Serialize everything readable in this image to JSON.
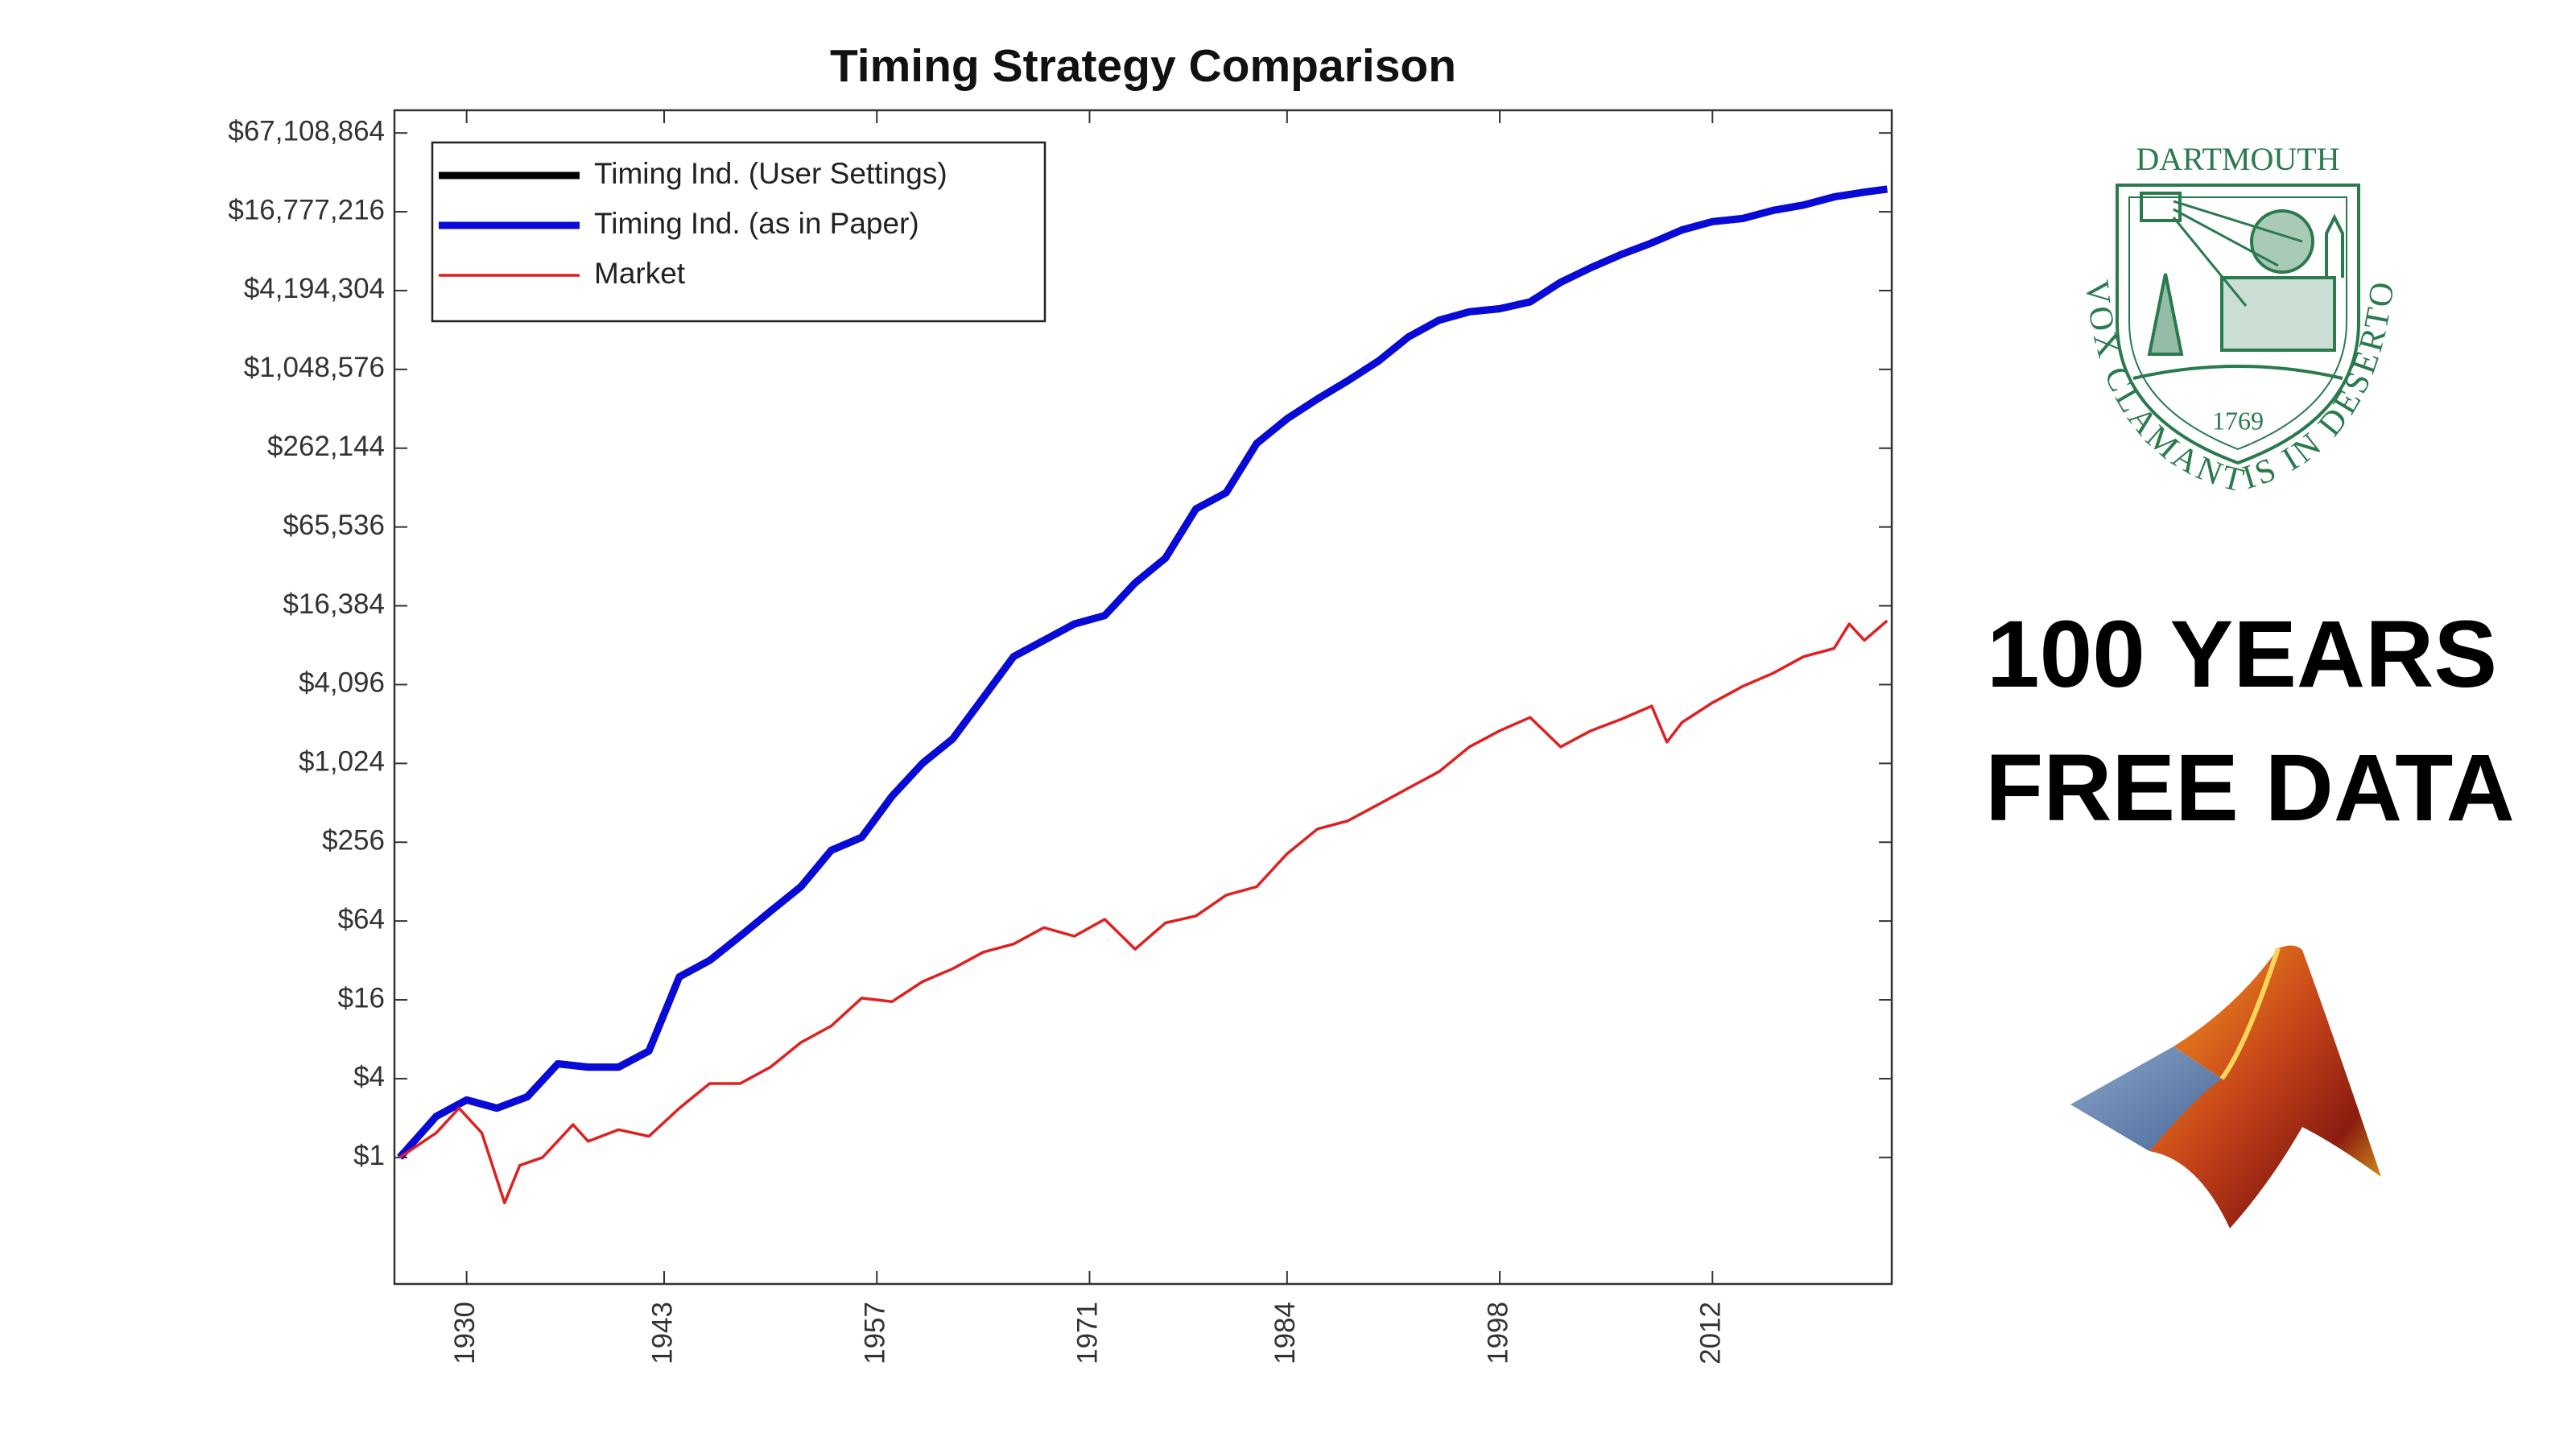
{
  "chart_data": {
    "type": "line",
    "title": "Timing Strategy Comparison",
    "yscale": "log",
    "grid": false,
    "legend_location": "northwest",
    "xlim": [
      1925.25,
      2023.8
    ],
    "xticks": [
      1930,
      1943,
      1957,
      1971,
      1984,
      1998,
      2012
    ],
    "ylim": [
      0.108,
      100000000
    ],
    "yticks": [
      {
        "value": 1,
        "label": "$1"
      },
      {
        "value": 4,
        "label": "$4"
      },
      {
        "value": 16,
        "label": "$16"
      },
      {
        "value": 64,
        "label": "$64"
      },
      {
        "value": 256,
        "label": "$256"
      },
      {
        "value": 1024,
        "label": "$1,024"
      },
      {
        "value": 4096,
        "label": "$4,096"
      },
      {
        "value": 16384,
        "label": "$16,384"
      },
      {
        "value": 65536,
        "label": "$65,536"
      },
      {
        "value": 262144,
        "label": "$262,144"
      },
      {
        "value": 1048576,
        "label": "$1,048,576"
      },
      {
        "value": 4194304,
        "label": "$4,194,304"
      },
      {
        "value": 16777216,
        "label": "$16,777,216"
      },
      {
        "value": 67108864,
        "label": "$67,108,864"
      }
    ],
    "series": [
      {
        "name": "Timing Ind. (User Settings)",
        "color": "#000000",
        "width": 9,
        "x": [
          1925.6,
          1928,
          1930,
          1932,
          1934,
          1936,
          1938,
          1940,
          1942,
          1944,
          1946,
          1948,
          1950,
          1952,
          1954,
          1956,
          1958,
          1960,
          1962,
          1964,
          1966,
          1968,
          1970,
          1972,
          1974,
          1976,
          1978,
          1980,
          1982,
          1984,
          1986,
          1988,
          1990,
          1992,
          1994,
          1996,
          1998,
          2000,
          2002,
          2004,
          2006,
          2008,
          2010,
          2012,
          2014,
          2016,
          2018,
          2020,
          2022,
          2023.5
        ],
        "values": [
          1,
          2.06,
          2.75,
          2.38,
          2.91,
          5.19,
          4.9,
          4.9,
          6.5,
          24,
          32,
          49,
          76,
          117,
          222,
          279,
          575,
          1024,
          1580,
          3250,
          6700,
          8930,
          11900,
          13800,
          24500,
          37900,
          90100,
          120000,
          285000,
          440000,
          623000,
          858000,
          1210000,
          1860000,
          2490000,
          2890000,
          3050000,
          3440000,
          4850000,
          6280000,
          7920000,
          9700000,
          12200000,
          14100000,
          14900000,
          17200000,
          18900000,
          21800000,
          23700000,
          25000000
        ]
      },
      {
        "name": "Timing Ind. (as in Paper)",
        "color": "#0a0ad8",
        "width": 9,
        "x": [
          1925.6,
          1928,
          1930,
          1932,
          1934,
          1936,
          1938,
          1940,
          1942,
          1944,
          1946,
          1948,
          1950,
          1952,
          1954,
          1956,
          1958,
          1960,
          1962,
          1964,
          1966,
          1968,
          1970,
          1972,
          1974,
          1976,
          1978,
          1980,
          1982,
          1984,
          1986,
          1988,
          1990,
          1992,
          1994,
          1996,
          1998,
          2000,
          2002,
          2004,
          2006,
          2008,
          2010,
          2012,
          2014,
          2016,
          2018,
          2020,
          2022,
          2023.5
        ],
        "values": [
          1,
          2.06,
          2.75,
          2.38,
          2.91,
          5.19,
          4.9,
          4.9,
          6.5,
          24,
          32,
          49,
          76,
          117,
          222,
          279,
          575,
          1024,
          1580,
          3250,
          6700,
          8930,
          11900,
          13800,
          24500,
          37900,
          90100,
          120000,
          285000,
          440000,
          623000,
          858000,
          1210000,
          1860000,
          2490000,
          2890000,
          3050000,
          3440000,
          4850000,
          6280000,
          7920000,
          9700000,
          12200000,
          14100000,
          14900000,
          17200000,
          18900000,
          21800000,
          23700000,
          25000000
        ]
      },
      {
        "name": "Market",
        "color": "#e02020",
        "width": 3.5,
        "x": [
          1925.6,
          1928,
          1929.5,
          1931,
          1932.5,
          1933.5,
          1935,
          1937,
          1938,
          1940,
          1942,
          1944,
          1946,
          1948,
          1950,
          1952,
          1954,
          1956,
          1958,
          1960,
          1962,
          1964,
          1966,
          1968,
          1970,
          1972,
          1974,
          1976,
          1978,
          1980,
          1982,
          1984,
          1986,
          1988,
          1990,
          1992,
          1994,
          1996,
          1998,
          2000,
          2002,
          2004,
          2006,
          2008,
          2009,
          2010,
          2012,
          2014,
          2016,
          2018,
          2020,
          2021,
          2022,
          2023.5
        ],
        "values": [
          1,
          1.54,
          2.38,
          1.54,
          0.45,
          0.87,
          1,
          1.78,
          1.33,
          1.63,
          1.45,
          2.38,
          3.67,
          3.67,
          4.9,
          7.56,
          10.1,
          16.5,
          15.5,
          22,
          27.7,
          37,
          42.7,
          57,
          49,
          66,
          39,
          62,
          70,
          101,
          117,
          209,
          323,
          373,
          497,
          664,
          886,
          1370,
          1820,
          2300,
          1370,
          1820,
          2230,
          2810,
          1490,
          2110,
          2980,
          3980,
          5010,
          6700,
          7740,
          11900,
          8930,
          12600
        ]
      }
    ]
  },
  "logo": {
    "name": "DARTMOUTH",
    "motto": "VOX CLAMANTIS IN DESERTO",
    "year": "1769"
  },
  "headline": [
    "100 YEARS",
    "FREE DATA"
  ]
}
